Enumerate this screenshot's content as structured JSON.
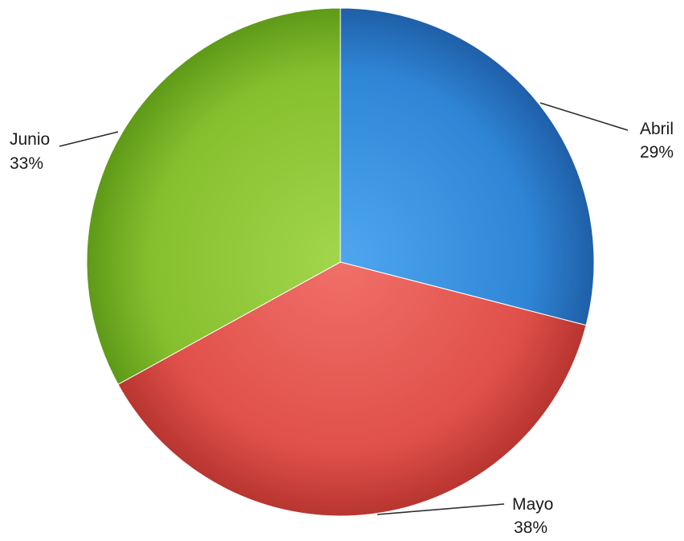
{
  "chart_data": {
    "type": "pie",
    "title": "",
    "slices": [
      {
        "label": "Abril",
        "value": 29,
        "value_label": "29%",
        "color": "#2F86D6",
        "color_light": "#4FA6F0",
        "color_dark": "#1F5FA8"
      },
      {
        "label": "Mayo",
        "value": 38,
        "value_label": "38%",
        "color": "#E0504A",
        "color_light": "#F07068",
        "color_dark": "#B83530"
      },
      {
        "label": "Junio",
        "value": 33,
        "value_label": "33%",
        "color": "#86BF2E",
        "color_light": "#A2D64C",
        "color_dark": "#5E9A18"
      }
    ],
    "start_angle": "12 o'clock",
    "direction": "clockwise",
    "legend": "none",
    "data_labels": "outside with leader lines"
  }
}
